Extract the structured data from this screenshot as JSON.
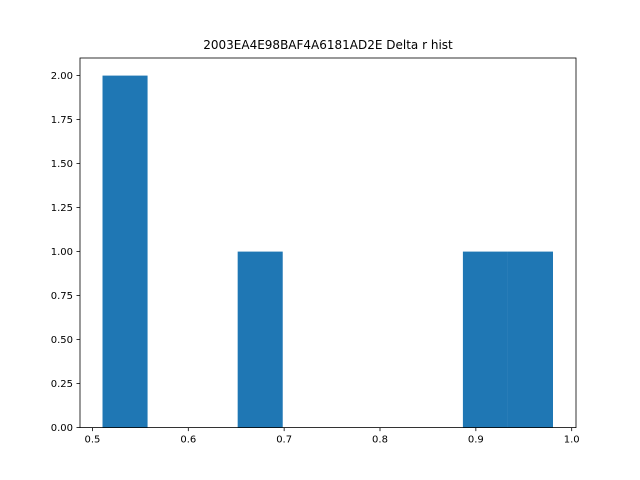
{
  "chart_data": {
    "type": "bar",
    "title": "2003EA4E98BAF4A6181AD2E Delta r hist",
    "xlabel": "",
    "ylabel": "",
    "xlim": [
      0.487,
      1.0045
    ],
    "ylim": [
      0,
      2.1
    ],
    "x_ticks": [
      {
        "value": 0.5,
        "label": "0.5"
      },
      {
        "value": 0.6,
        "label": "0.6"
      },
      {
        "value": 0.7,
        "label": "0.7"
      },
      {
        "value": 0.8,
        "label": "0.8"
      },
      {
        "value": 0.9,
        "label": "0.9"
      },
      {
        "value": 1.0,
        "label": "1.0"
      }
    ],
    "y_ticks": [
      {
        "value": 0.0,
        "label": "0.00"
      },
      {
        "value": 0.25,
        "label": "0.25"
      },
      {
        "value": 0.5,
        "label": "0.50"
      },
      {
        "value": 0.75,
        "label": "0.75"
      },
      {
        "value": 1.0,
        "label": "1.00"
      },
      {
        "value": 1.25,
        "label": "1.25"
      },
      {
        "value": 1.5,
        "label": "1.50"
      },
      {
        "value": 1.75,
        "label": "1.75"
      },
      {
        "value": 2.0,
        "label": "2.00"
      }
    ],
    "bins": [
      {
        "x0": 0.5105,
        "x1": 0.5575,
        "count": 2
      },
      {
        "x0": 0.5575,
        "x1": 0.6045,
        "count": 0
      },
      {
        "x0": 0.6045,
        "x1": 0.6515,
        "count": 0
      },
      {
        "x0": 0.6515,
        "x1": 0.6985,
        "count": 1
      },
      {
        "x0": 0.6985,
        "x1": 0.7455,
        "count": 0
      },
      {
        "x0": 0.7455,
        "x1": 0.7925,
        "count": 0
      },
      {
        "x0": 0.7925,
        "x1": 0.8395,
        "count": 0
      },
      {
        "x0": 0.8395,
        "x1": 0.8865,
        "count": 0
      },
      {
        "x0": 0.8865,
        "x1": 0.9335,
        "count": 1
      },
      {
        "x0": 0.9335,
        "x1": 0.9805,
        "count": 1
      }
    ],
    "bar_color": "#1f77b4",
    "grid": false,
    "legend": "none"
  }
}
